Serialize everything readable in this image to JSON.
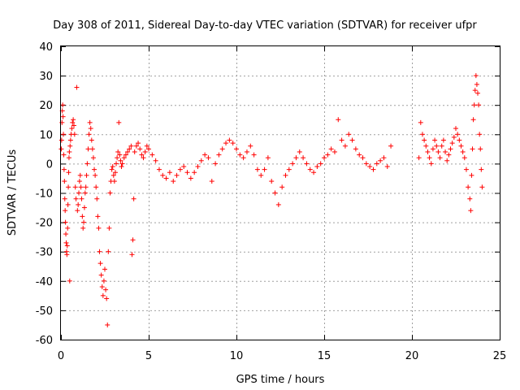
{
  "chart_data": {
    "type": "scatter",
    "title": "Day 308 of 2011, Sidereal Day-to-day VTEC variation (SDTVAR) for receiver ufpr",
    "xlabel": "GPS time / hours",
    "ylabel": "SDTVAR / TECUs",
    "xlim": [
      0,
      25
    ],
    "ylim": [
      -60,
      40
    ],
    "x_ticks": [
      "0",
      "5",
      "10",
      "15",
      "20",
      "25"
    ],
    "y_ticks": [
      "40",
      "30",
      "20",
      "10",
      "0",
      "-10",
      "-20",
      "-30",
      "-40",
      "-50",
      "-60"
    ],
    "x_tick_values": [
      0,
      5,
      10,
      15,
      20,
      25
    ],
    "y_tick_values": [
      40,
      30,
      20,
      10,
      0,
      -10,
      -20,
      -30,
      -40,
      -50,
      -60
    ],
    "grid": true,
    "marker": "+",
    "color": "#ff0000",
    "series": [
      {
        "name": "ufpr",
        "description": "dense sampled trace; each entry is [x_hours, y_TECU]",
        "points": [
          [
            0.02,
            5
          ],
          [
            0.04,
            8
          ],
          [
            0.06,
            14
          ],
          [
            0.08,
            18
          ],
          [
            0.1,
            20
          ],
          [
            0.12,
            16
          ],
          [
            0.14,
            10
          ],
          [
            0.16,
            3
          ],
          [
            0.18,
            -2
          ],
          [
            0.2,
            -6
          ],
          [
            0.22,
            -12
          ],
          [
            0.24,
            -16
          ],
          [
            0.26,
            -20
          ],
          [
            0.28,
            -24
          ],
          [
            0.3,
            -27
          ],
          [
            0.32,
            -30
          ],
          [
            0.34,
            -31
          ],
          [
            0.36,
            -28
          ],
          [
            0.38,
            -22
          ],
          [
            0.4,
            -14
          ],
          [
            0.42,
            -8
          ],
          [
            0.44,
            -3
          ],
          [
            0.46,
            2
          ],
          [
            0.48,
            4
          ],
          [
            0.5,
            -40
          ],
          [
            0.52,
            6
          ],
          [
            0.55,
            8
          ],
          [
            0.58,
            10
          ],
          [
            0.62,
            12
          ],
          [
            0.66,
            14
          ],
          [
            0.7,
            15
          ],
          [
            0.74,
            13
          ],
          [
            0.78,
            10
          ],
          [
            0.82,
            -8
          ],
          [
            0.86,
            -12
          ],
          [
            0.9,
            26
          ],
          [
            0.94,
            -16
          ],
          [
            0.98,
            -14
          ],
          [
            1.02,
            -10
          ],
          [
            1.06,
            -6
          ],
          [
            1.1,
            -4
          ],
          [
            1.14,
            -8
          ],
          [
            1.18,
            -12
          ],
          [
            1.22,
            -18
          ],
          [
            1.26,
            -22
          ],
          [
            1.3,
            -20
          ],
          [
            1.34,
            -15
          ],
          [
            1.38,
            -10
          ],
          [
            1.42,
            -8
          ],
          [
            1.46,
            -4
          ],
          [
            1.5,
            0
          ],
          [
            1.55,
            5
          ],
          [
            1.6,
            10
          ],
          [
            1.65,
            14
          ],
          [
            1.7,
            12
          ],
          [
            1.75,
            8
          ],
          [
            1.8,
            5
          ],
          [
            1.85,
            2
          ],
          [
            1.9,
            -2
          ],
          [
            1.95,
            -4
          ],
          [
            2.0,
            -8
          ],
          [
            2.05,
            -12
          ],
          [
            2.1,
            -18
          ],
          [
            2.15,
            -22
          ],
          [
            2.2,
            -30
          ],
          [
            2.25,
            -34
          ],
          [
            2.3,
            -38
          ],
          [
            2.35,
            -42
          ],
          [
            2.4,
            -45
          ],
          [
            2.45,
            -40
          ],
          [
            2.5,
            -36
          ],
          [
            2.55,
            -43
          ],
          [
            2.6,
            -46
          ],
          [
            2.65,
            -55
          ],
          [
            2.7,
            -30
          ],
          [
            2.75,
            -22
          ],
          [
            2.8,
            -10
          ],
          [
            2.85,
            -6
          ],
          [
            2.9,
            -2
          ],
          [
            2.95,
            -1
          ],
          [
            3.0,
            -4
          ],
          [
            3.05,
            -6
          ],
          [
            3.1,
            -3
          ],
          [
            3.15,
            0
          ],
          [
            3.2,
            2
          ],
          [
            3.25,
            4
          ],
          [
            3.3,
            14
          ],
          [
            3.35,
            3
          ],
          [
            3.4,
            1
          ],
          [
            3.45,
            -1
          ],
          [
            3.5,
            0
          ],
          [
            3.6,
            2
          ],
          [
            3.7,
            3
          ],
          [
            3.8,
            4
          ],
          [
            3.9,
            5
          ],
          [
            4.0,
            6
          ],
          [
            4.05,
            -31
          ],
          [
            4.1,
            -26
          ],
          [
            4.15,
            -12
          ],
          [
            4.2,
            4
          ],
          [
            4.3,
            6
          ],
          [
            4.4,
            7
          ],
          [
            4.5,
            5
          ],
          [
            4.6,
            3
          ],
          [
            4.7,
            2
          ],
          [
            4.8,
            4
          ],
          [
            4.9,
            6
          ],
          [
            5.0,
            5
          ],
          [
            5.2,
            3
          ],
          [
            5.4,
            1
          ],
          [
            5.6,
            -2
          ],
          [
            5.8,
            -4
          ],
          [
            6.0,
            -5
          ],
          [
            6.2,
            -3
          ],
          [
            6.4,
            -6
          ],
          [
            6.6,
            -4
          ],
          [
            6.8,
            -2
          ],
          [
            7.0,
            -1
          ],
          [
            7.2,
            -3
          ],
          [
            7.4,
            -5
          ],
          [
            7.6,
            -3
          ],
          [
            7.8,
            -1
          ],
          [
            8.0,
            1
          ],
          [
            8.2,
            3
          ],
          [
            8.4,
            2
          ],
          [
            8.6,
            -6
          ],
          [
            8.8,
            0
          ],
          [
            9.0,
            3
          ],
          [
            9.2,
            5
          ],
          [
            9.4,
            7
          ],
          [
            9.6,
            8
          ],
          [
            9.8,
            7
          ],
          [
            10.0,
            5
          ],
          [
            10.2,
            3
          ],
          [
            10.4,
            2
          ],
          [
            10.6,
            4
          ],
          [
            10.8,
            6
          ],
          [
            11.0,
            3
          ],
          [
            11.2,
            -2
          ],
          [
            11.4,
            -4
          ],
          [
            11.6,
            -2
          ],
          [
            11.8,
            2
          ],
          [
            12.0,
            -6
          ],
          [
            12.2,
            -10
          ],
          [
            12.4,
            -14
          ],
          [
            12.6,
            -8
          ],
          [
            12.8,
            -4
          ],
          [
            13.0,
            -2
          ],
          [
            13.2,
            0
          ],
          [
            13.4,
            2
          ],
          [
            13.6,
            4
          ],
          [
            13.8,
            2
          ],
          [
            14.0,
            0
          ],
          [
            14.2,
            -2
          ],
          [
            14.4,
            -3
          ],
          [
            14.6,
            -1
          ],
          [
            14.8,
            0
          ],
          [
            15.0,
            2
          ],
          [
            15.2,
            3
          ],
          [
            15.4,
            5
          ],
          [
            15.6,
            4
          ],
          [
            15.8,
            15
          ],
          [
            16.0,
            8
          ],
          [
            16.2,
            6
          ],
          [
            16.4,
            10
          ],
          [
            16.6,
            8
          ],
          [
            16.8,
            5
          ],
          [
            17.0,
            3
          ],
          [
            17.2,
            2
          ],
          [
            17.4,
            0
          ],
          [
            17.6,
            -1
          ],
          [
            17.8,
            -2
          ],
          [
            18.0,
            0
          ],
          [
            18.2,
            1
          ],
          [
            18.4,
            2
          ],
          [
            18.6,
            -1
          ],
          [
            18.8,
            6
          ],
          [
            20.4,
            2
          ],
          [
            20.5,
            14
          ],
          [
            20.6,
            10
          ],
          [
            20.7,
            8
          ],
          [
            20.8,
            6
          ],
          [
            20.9,
            4
          ],
          [
            21.0,
            2
          ],
          [
            21.1,
            0
          ],
          [
            21.2,
            5
          ],
          [
            21.3,
            8
          ],
          [
            21.4,
            6
          ],
          [
            21.5,
            4
          ],
          [
            21.6,
            2
          ],
          [
            21.7,
            6
          ],
          [
            21.8,
            8
          ],
          [
            21.9,
            4
          ],
          [
            22.0,
            1
          ],
          [
            22.1,
            3
          ],
          [
            22.2,
            5
          ],
          [
            22.3,
            7
          ],
          [
            22.4,
            9
          ],
          [
            22.5,
            12
          ],
          [
            22.6,
            10
          ],
          [
            22.7,
            8
          ],
          [
            22.8,
            6
          ],
          [
            22.9,
            4
          ],
          [
            23.0,
            2
          ],
          [
            23.1,
            -2
          ],
          [
            23.2,
            -8
          ],
          [
            23.3,
            -12
          ],
          [
            23.35,
            -16
          ],
          [
            23.4,
            -4
          ],
          [
            23.45,
            5
          ],
          [
            23.5,
            15
          ],
          [
            23.55,
            20
          ],
          [
            23.6,
            25
          ],
          [
            23.65,
            30
          ],
          [
            23.7,
            27
          ],
          [
            23.75,
            24
          ],
          [
            23.8,
            20
          ],
          [
            23.85,
            10
          ],
          [
            23.9,
            5
          ],
          [
            23.95,
            -2
          ],
          [
            24.0,
            -8
          ]
        ]
      }
    ]
  }
}
